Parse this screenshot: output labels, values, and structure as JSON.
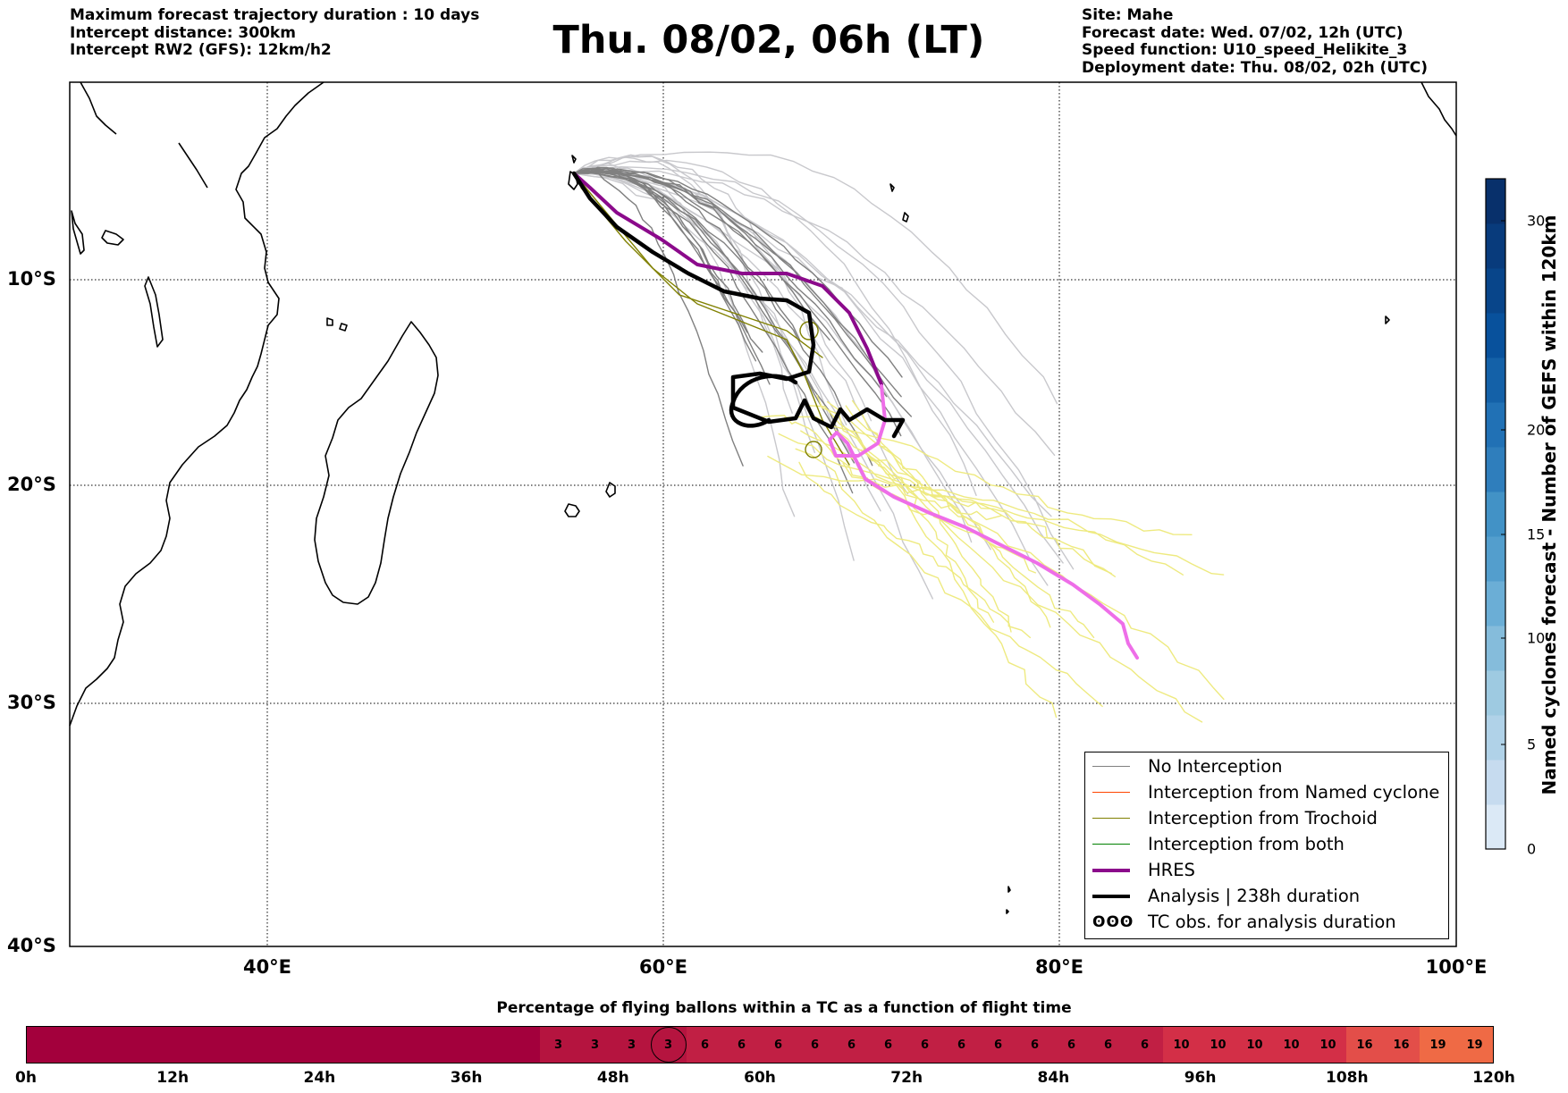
{
  "header": {
    "left": [
      "Maximum forecast trajectory duration : 10 days",
      "Intercept distance: 300km",
      "Intercept RW2 (GFS):  12km/h2"
    ],
    "title": "Thu. 08/02, 06h (LT)",
    "right": [
      "Site: Mahe",
      "Forecast date: Wed. 07/02, 12h (UTC)",
      "Speed function: U10_speed_Helikite_3",
      "Deployment date: Thu. 08/02, 02h (UTC)"
    ]
  },
  "map": {
    "lon_range": [
      30,
      100
    ],
    "lat_range": [
      -40,
      0
    ],
    "lat_labels": [
      "10°S",
      "20°S",
      "30°S",
      "40°S"
    ],
    "lon_labels": [
      "40°E",
      "60°E",
      "80°E",
      "100°E"
    ],
    "colors": {
      "no_interception": "#808080",
      "no_interception_light": "#c8c8cc",
      "trochoid": "#808000",
      "yellow_members": "#eeea80",
      "hres": "#8b0a8b",
      "hres_late": "#ee6ee8",
      "analysis": "#000000"
    }
  },
  "legend": {
    "items": [
      {
        "label": "No Interception",
        "color": "#808080",
        "width": 1
      },
      {
        "label": "Interception from Named cyclone",
        "color": "#ff4500",
        "width": 1
      },
      {
        "label": "Interception from Trochoid",
        "color": "#808000",
        "width": 1
      },
      {
        "label": "Interception from both",
        "color": "#008000",
        "width": 1
      },
      {
        "label": "HRES",
        "color": "#8b0a8b",
        "width": 4
      },
      {
        "label": "Analysis | 238h duration",
        "color": "#000000",
        "width": 4
      }
    ],
    "tc_obs_icon": "ʘʘʘ",
    "tc_obs_label": "TC obs. for analysis duration"
  },
  "colorbar": {
    "label": "Named cyclones forecast - Number of GEFS within 120km",
    "ticks": [
      "0",
      "5",
      "10",
      "15",
      "20",
      "30"
    ],
    "colors": [
      "#dbe9f6",
      "#c6dbef",
      "#b0d2e8",
      "#9ecae1",
      "#85bcdb",
      "#6baed6",
      "#539ecd",
      "#4292c6",
      "#2f7ebc",
      "#2171b5",
      "#1461a8",
      "#08519c",
      "#08458a",
      "#083b7c",
      "#08306b"
    ]
  },
  "percentage_bar": {
    "title": "Percentage of flying ballons within a TC as a function of flight time",
    "values": [
      "",
      "",
      "",
      "",
      "",
      "",
      "",
      "",
      "",
      "",
      "",
      "",
      "",
      "",
      "3",
      "3",
      "3",
      "3",
      "6",
      "6",
      "6",
      "6",
      "6",
      "6",
      "6",
      "6",
      "6",
      "6",
      "6",
      "6",
      "6",
      "10",
      "10",
      "10",
      "10",
      "10",
      "16",
      "16",
      "19",
      "19"
    ],
    "colors": [
      "#a3003c",
      "#a3003c",
      "#a3003c",
      "#a3003c",
      "#a3003c",
      "#a3003c",
      "#a3003c",
      "#a3003c",
      "#a3003c",
      "#a3003c",
      "#a3003c",
      "#a3003c",
      "#a3003c",
      "#a3003c",
      "#b5143f",
      "#b5143f",
      "#b5143f",
      "#b5143f",
      "#c11f44",
      "#c11f44",
      "#c11f44",
      "#c11f44",
      "#c11f44",
      "#c11f44",
      "#c11f44",
      "#c11f44",
      "#c11f44",
      "#c11f44",
      "#c11f44",
      "#c11f44",
      "#c11f44",
      "#d32f47",
      "#d32f47",
      "#d32f47",
      "#d32f47",
      "#d32f47",
      "#e34e49",
      "#e34e49",
      "#ef6a45",
      "#ef6a45"
    ],
    "circled_index": 17,
    "ticks": [
      "0h",
      "12h",
      "24h",
      "36h",
      "48h",
      "60h",
      "72h",
      "84h",
      "96h",
      "108h",
      "120h"
    ]
  }
}
